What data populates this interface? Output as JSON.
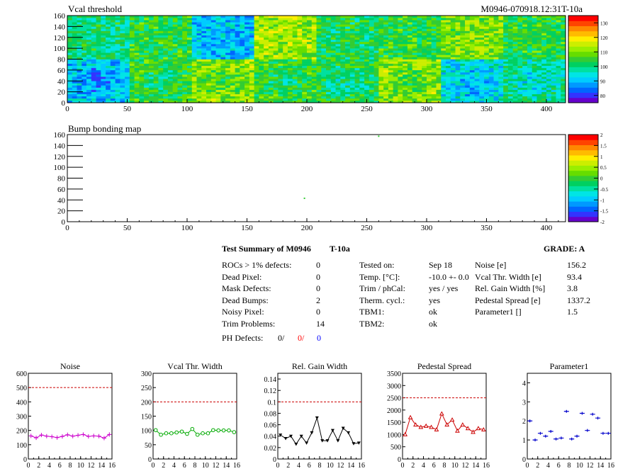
{
  "maps": {
    "vcal": {
      "title": "Vcal threshold",
      "id_label": "M0946-070918.12:31T-10a",
      "xlim": [
        0,
        416
      ],
      "ylim": [
        0,
        160
      ],
      "xticks": [
        "0",
        "50",
        "100",
        "150",
        "200",
        "250",
        "300",
        "350",
        "400"
      ],
      "yticks": [
        "0",
        "20",
        "40",
        "60",
        "80",
        "100",
        "120",
        "140",
        "160"
      ],
      "palette_labels": [
        "80",
        "90",
        "100",
        "110",
        "120",
        "130"
      ],
      "palette_range": [
        75,
        135
      ]
    },
    "bump": {
      "title": "Bump bonding map",
      "xlim": [
        0,
        416
      ],
      "ylim": [
        0,
        160
      ],
      "xticks": [
        "0",
        "50",
        "100",
        "150",
        "200",
        "250",
        "300",
        "350",
        "400"
      ],
      "yticks": [
        "0",
        "20",
        "40",
        "60",
        "80",
        "100",
        "120",
        "140",
        "160"
      ],
      "palette_labels": [
        "-2",
        "-1.5",
        "-1",
        "-0.5",
        "0",
        "0.5",
        "1",
        "1.5",
        "2"
      ],
      "palette_range": [
        -2,
        2
      ],
      "hits": [
        {
          "x": 198,
          "y": 43
        },
        {
          "x": 260,
          "y": 157
        }
      ]
    }
  },
  "summary": {
    "title": "Test Summary of M0946",
    "tag": "T-10a",
    "grade": "GRADE:  A",
    "col1": [
      {
        "label": "ROCs > 1% defects:",
        "value": "0"
      },
      {
        "label": "Dead Pixel:",
        "value": "0"
      },
      {
        "label": "Mask Defects:",
        "value": "0"
      },
      {
        "label": "Dead Bumps:",
        "value": "2"
      },
      {
        "label": "Noisy Pixel:",
        "value": "0"
      },
      {
        "label": "Trim Problems:",
        "value": "14"
      }
    ],
    "ph": {
      "label": "PH Defects:",
      "v1": "0/",
      "v2": "0/",
      "v3": "0"
    },
    "col2": [
      {
        "label": "Tested on:",
        "value": "Sep 18"
      },
      {
        "label": "Temp. [°C]:",
        "value": "-10.0 +- 0.0"
      },
      {
        "label": "Trim / phCal:",
        "value": "yes / yes"
      },
      {
        "label": "Therm. cycl.:",
        "value": "yes"
      },
      {
        "label": "TBM1:",
        "value": "ok"
      },
      {
        "label": "TBM2:",
        "value": "ok"
      }
    ],
    "col3": [
      {
        "label": "Noise [e]",
        "value": "156.2"
      },
      {
        "label": "Vcal Thr. Width [e]",
        "value": "93.4"
      },
      {
        "label": "Rel. Gain Width [%]",
        "value": "3.8"
      },
      {
        "label": "Pedestal Spread [e]",
        "value": "1337.2"
      },
      {
        "label": "Parameter1 []",
        "value": "1.5"
      }
    ]
  },
  "colors": {
    "magenta": "#cc00cc",
    "green": "#00aa00",
    "black": "#000000",
    "red": "#cc0000",
    "blue": "#0000cc",
    "limit": "#cc0000"
  },
  "chart_data": [
    {
      "type": "line",
      "title": "Noise",
      "x": [
        0,
        1,
        2,
        3,
        4,
        5,
        6,
        7,
        8,
        9,
        10,
        11,
        12,
        13,
        14,
        15
      ],
      "values": [
        162,
        148,
        168,
        160,
        156,
        150,
        158,
        170,
        160,
        166,
        172,
        158,
        162,
        160,
        146,
        172
      ],
      "xlim": [
        0,
        16
      ],
      "ylim": [
        0,
        600
      ],
      "limit": 500,
      "marker": "plus",
      "color": "magenta",
      "xticks": [
        "0",
        "2",
        "4",
        "6",
        "8",
        "10",
        "12",
        "14",
        "16"
      ],
      "yticks": [
        "0",
        "100",
        "200",
        "300",
        "400",
        "500",
        "600"
      ]
    },
    {
      "type": "line",
      "title": "Vcal Thr. Width",
      "x": [
        0,
        1,
        2,
        3,
        4,
        5,
        6,
        7,
        8,
        9,
        10,
        11,
        12,
        13,
        14,
        15
      ],
      "values": [
        101,
        85,
        90,
        90,
        93,
        96,
        88,
        105,
        85,
        90,
        90,
        101,
        100,
        100,
        100,
        94
      ],
      "xlim": [
        0,
        16
      ],
      "ylim": [
        0,
        300
      ],
      "limit": 200,
      "marker": "circle",
      "color": "green",
      "xticks": [
        "0",
        "2",
        "4",
        "6",
        "8",
        "10",
        "12",
        "14",
        "16"
      ],
      "yticks": [
        "0",
        "50",
        "100",
        "150",
        "200",
        "250",
        "300"
      ]
    },
    {
      "type": "line",
      "title": "Rel. Gain Width",
      "x": [
        0,
        1,
        2,
        3,
        4,
        5,
        6,
        7,
        8,
        9,
        10,
        11,
        12,
        13,
        14,
        15
      ],
      "values": [
        0.042,
        0.036,
        0.04,
        0.026,
        0.04,
        0.028,
        0.046,
        0.072,
        0.032,
        0.032,
        0.05,
        0.032,
        0.054,
        0.046,
        0.027,
        0.028
      ],
      "xlim": [
        0,
        16
      ],
      "ylim": [
        0,
        0.15
      ],
      "limit": 0.1,
      "marker": "triangle-down",
      "color": "black",
      "xticks": [
        "0",
        "2",
        "4",
        "6",
        "8",
        "10",
        "12",
        "14",
        "16"
      ],
      "yticks": [
        "0",
        "0.02",
        "0.04",
        "0.06",
        "0.08",
        "0.1",
        "0.12",
        "0.14"
      ]
    },
    {
      "type": "line",
      "title": "Pedestal Spread",
      "x": [
        0,
        1,
        2,
        3,
        4,
        5,
        6,
        7,
        8,
        9,
        10,
        11,
        12,
        13,
        14,
        15
      ],
      "values": [
        1000,
        1700,
        1400,
        1300,
        1350,
        1300,
        1200,
        1850,
        1400,
        1600,
        1150,
        1400,
        1250,
        1100,
        1250,
        1200
      ],
      "xlim": [
        0,
        16
      ],
      "ylim": [
        0,
        3500
      ],
      "limit": 2500,
      "marker": "triangle",
      "color": "red",
      "xticks": [
        "0",
        "2",
        "4",
        "6",
        "8",
        "10",
        "12",
        "14",
        "16"
      ],
      "yticks": [
        "0",
        "500",
        "1000",
        "1500",
        "2000",
        "2500",
        "3000",
        "3500"
      ]
    },
    {
      "type": "scatter",
      "title": "Parameter1",
      "x": [
        0,
        1,
        2,
        3,
        4,
        5,
        6,
        7,
        8,
        9,
        10,
        11,
        12,
        13,
        14,
        15
      ],
      "values": [
        2.0,
        1.0,
        1.35,
        1.2,
        1.45,
        1.05,
        1.1,
        2.5,
        1.05,
        1.2,
        2.4,
        1.5,
        2.35,
        2.15,
        1.35,
        1.35
      ],
      "xlim": [
        0,
        16
      ],
      "ylim": [
        0,
        4.5
      ],
      "marker": "dash-cross",
      "color": "blue",
      "xticks": [
        "0",
        "2",
        "4",
        "6",
        "8",
        "10",
        "12",
        "14",
        "16"
      ],
      "yticks": [
        "0",
        "1",
        "2",
        "3",
        "4"
      ]
    }
  ]
}
